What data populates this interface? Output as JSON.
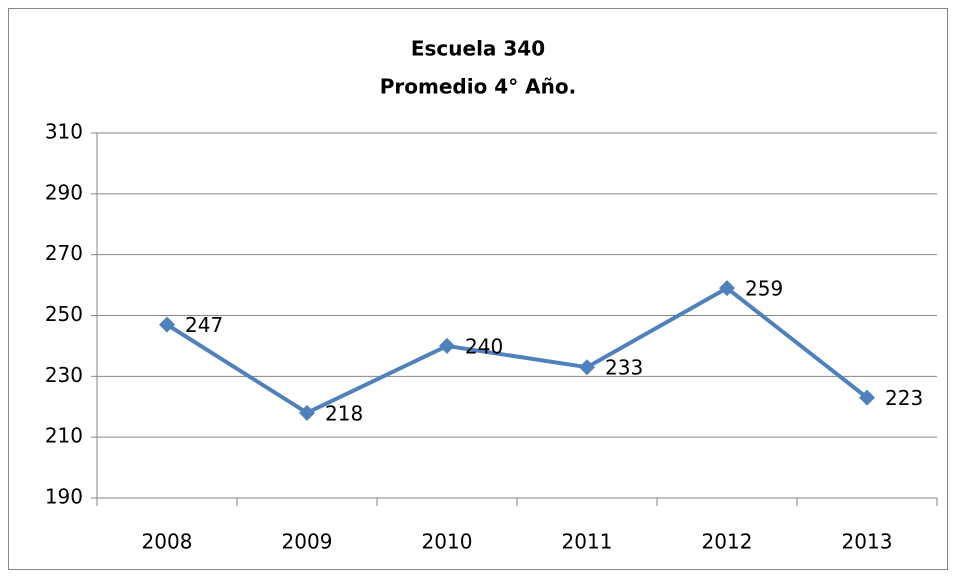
{
  "chart_data": {
    "type": "line",
    "title": "Escuela 340",
    "subtitle": "Promedio 4° Año.",
    "categories": [
      "2008",
      "2009",
      "2010",
      "2011",
      "2012",
      "2013"
    ],
    "series": [
      {
        "name": "Promedio",
        "color": "#4f81bd",
        "values": [
          247,
          218,
          240,
          233,
          259,
          223
        ]
      }
    ],
    "ylim": [
      190,
      310
    ],
    "yticks": [
      190,
      210,
      230,
      250,
      270,
      290,
      310
    ],
    "grid": true
  }
}
